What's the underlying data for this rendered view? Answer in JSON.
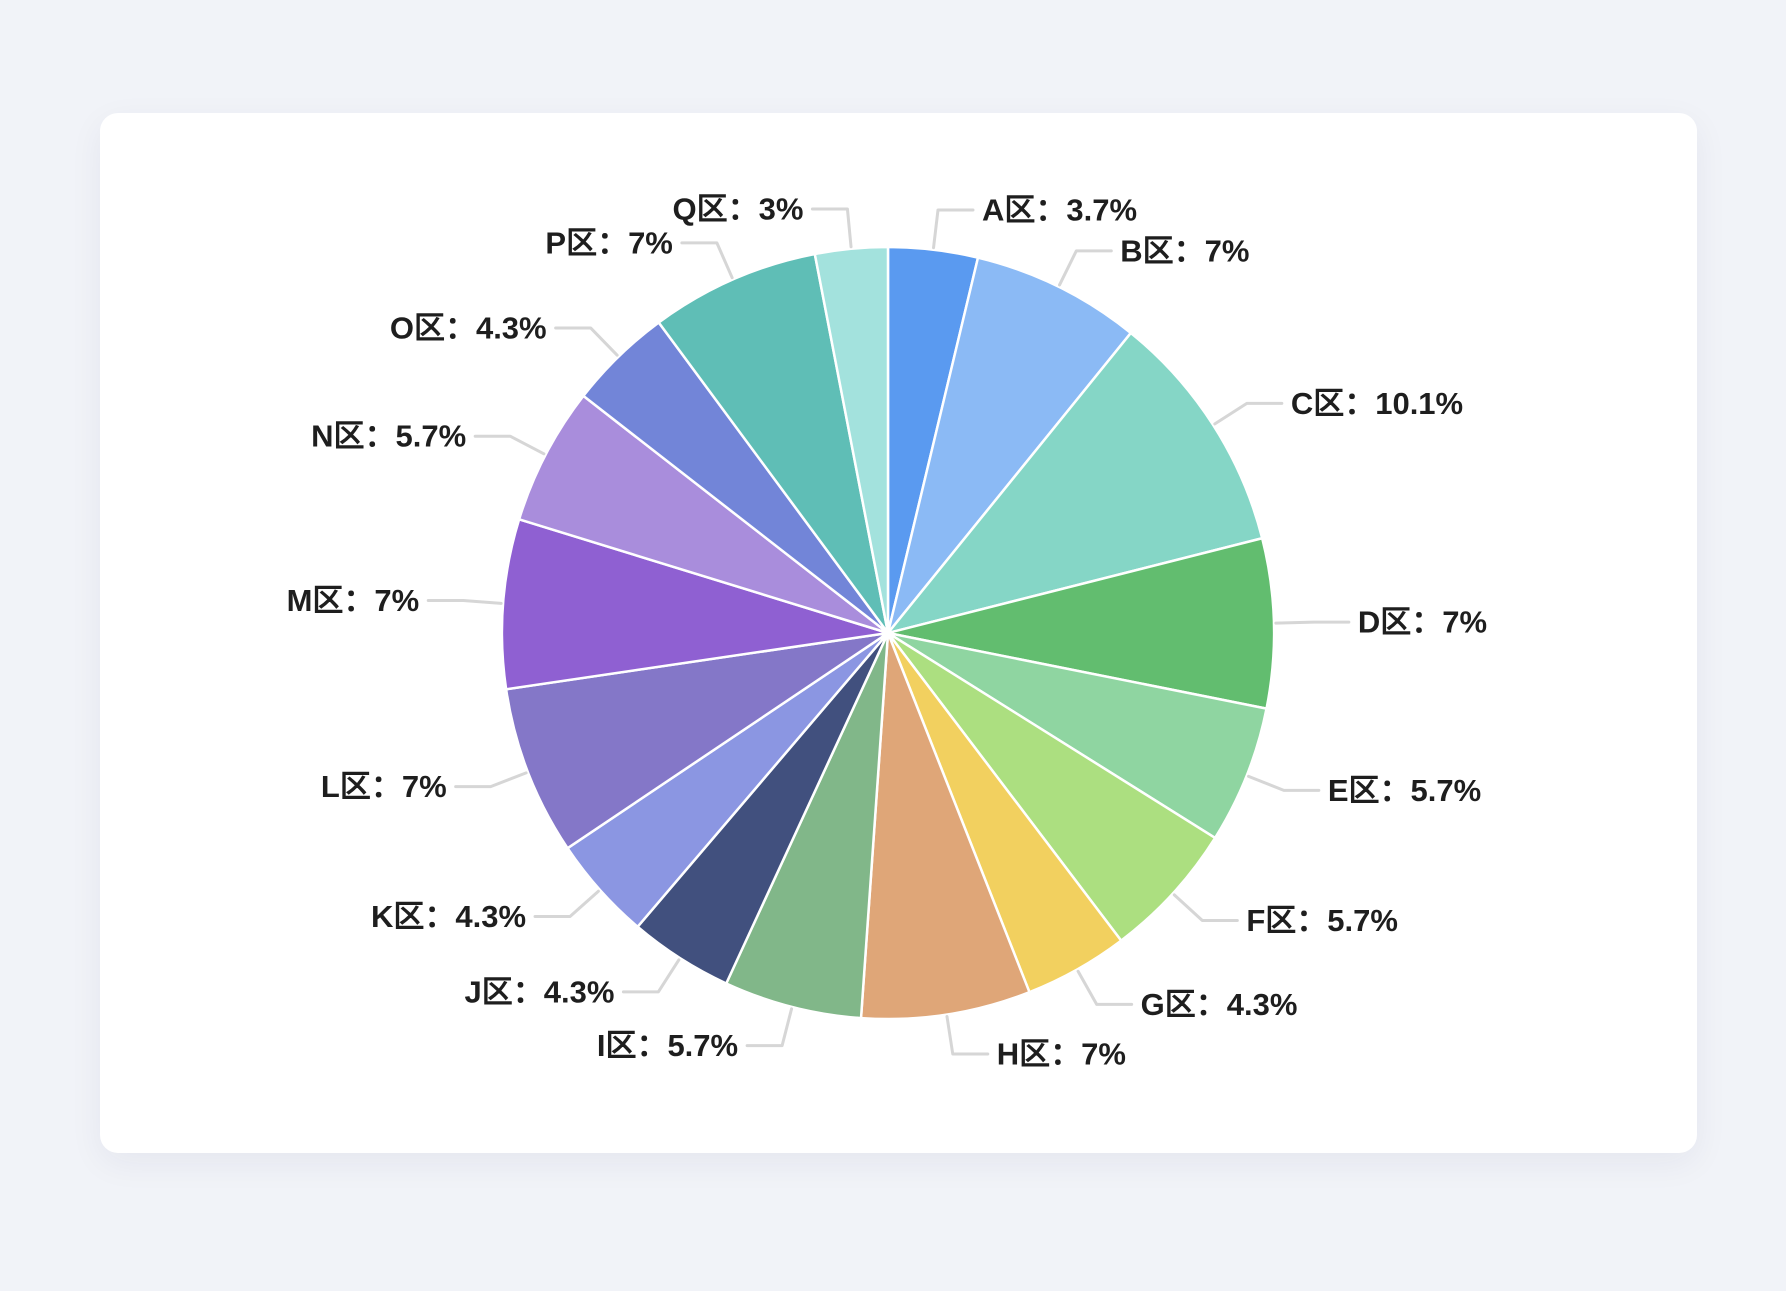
{
  "page": {
    "background_color": "#f1f3f8",
    "card_background_color": "#ffffff"
  },
  "chart_data": {
    "type": "pie",
    "title": "",
    "legend_position": "none",
    "labels_outside": true,
    "leader_line_color": "#d6d6d6",
    "label_text_color": "#1e1e1e",
    "slice_border_color": "#ffffff",
    "categories": [
      "A区",
      "B区",
      "C区",
      "D区",
      "E区",
      "F区",
      "G区",
      "H区",
      "I区",
      "J区",
      "K区",
      "L区",
      "M区",
      "N区",
      "O区",
      "P区",
      "Q区"
    ],
    "values": [
      3.7,
      7,
      10.1,
      7,
      5.7,
      5.7,
      4.3,
      7,
      5.7,
      4.3,
      4.3,
      7,
      7,
      5.7,
      4.3,
      7,
      3
    ],
    "slices": [
      {
        "name": "A区",
        "value": 3.7,
        "percent_label": "3.7%",
        "label": "A区：3.7%",
        "color": "#5a9af0"
      },
      {
        "name": "B区",
        "value": 7,
        "percent_label": "7%",
        "label": "B区：7%",
        "color": "#8bbaf5"
      },
      {
        "name": "C区",
        "value": 10.1,
        "percent_label": "10.1%",
        "label": "C区：10.1%",
        "color": "#85d6c6"
      },
      {
        "name": "D区",
        "value": 7,
        "percent_label": "7%",
        "label": "D区：7%",
        "color": "#62bd6f"
      },
      {
        "name": "E区",
        "value": 5.7,
        "percent_label": "5.7%",
        "label": "E区：5.7%",
        "color": "#8fd5a1"
      },
      {
        "name": "F区",
        "value": 5.7,
        "percent_label": "5.7%",
        "label": "F区：5.7%",
        "color": "#acdf80"
      },
      {
        "name": "G区",
        "value": 4.3,
        "percent_label": "4.3%",
        "label": "G区：4.3%",
        "color": "#f2d05f"
      },
      {
        "name": "H区",
        "value": 7,
        "percent_label": "7%",
        "label": "H区：7%",
        "color": "#dfa678"
      },
      {
        "name": "I区",
        "value": 5.7,
        "percent_label": "5.7%",
        "label": "I区：5.7%",
        "color": "#81b789"
      },
      {
        "name": "J区",
        "value": 4.3,
        "percent_label": "4.3%",
        "label": "J区：4.3%",
        "color": "#41507e"
      },
      {
        "name": "K区",
        "value": 4.3,
        "percent_label": "4.3%",
        "label": "K区：4.3%",
        "color": "#8b96e2"
      },
      {
        "name": "L区",
        "value": 7,
        "percent_label": "7%",
        "label": "L区：7%",
        "color": "#8477c8"
      },
      {
        "name": "M区",
        "value": 7,
        "percent_label": "7%",
        "label": "M区：7%",
        "color": "#8f60d2"
      },
      {
        "name": "N区",
        "value": 5.7,
        "percent_label": "5.7%",
        "label": "N区：5.7%",
        "color": "#a98ddc"
      },
      {
        "name": "O区",
        "value": 4.3,
        "percent_label": "4.3%",
        "label": "O区：4.3%",
        "color": "#7285d8"
      },
      {
        "name": "P区",
        "value": 7,
        "percent_label": "7%",
        "label": "P区：7%",
        "color": "#5fbeb6"
      },
      {
        "name": "Q区",
        "value": 3,
        "percent_label": "3%",
        "label": "Q区：3%",
        "color": "#a3e2dd"
      }
    ]
  }
}
